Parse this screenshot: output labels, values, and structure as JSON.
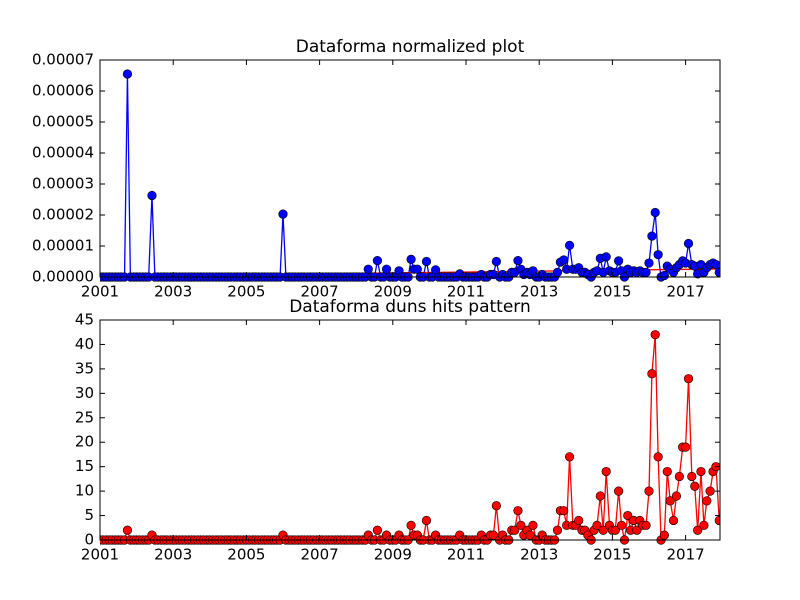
{
  "chart_data": [
    {
      "type": "line",
      "title": "Dataforma normalized plot",
      "color": "#0000ff",
      "x": [
        2001,
        2001.08,
        2001.17,
        2001.25,
        2001.33,
        2001.42,
        2001.5,
        2001.58,
        2001.67,
        2001.75,
        2001.83,
        2001.92,
        2002,
        2002.08,
        2002.17,
        2002.25,
        2002.33,
        2002.42,
        2002.5,
        2002.58,
        2002.67,
        2002.75,
        2002.83,
        2002.92,
        2003,
        2003.08,
        2003.17,
        2003.25,
        2003.33,
        2003.42,
        2003.5,
        2003.58,
        2003.67,
        2003.75,
        2003.83,
        2003.92,
        2004,
        2004.08,
        2004.17,
        2004.25,
        2004.33,
        2004.42,
        2004.5,
        2004.58,
        2004.67,
        2004.75,
        2004.83,
        2004.92,
        2005,
        2005.08,
        2005.17,
        2005.25,
        2005.33,
        2005.42,
        2005.5,
        2005.58,
        2005.67,
        2005.75,
        2005.83,
        2005.92,
        2006,
        2006.08,
        2006.17,
        2006.25,
        2006.33,
        2006.42,
        2006.5,
        2006.58,
        2006.67,
        2006.75,
        2006.83,
        2006.92,
        2007,
        2007.08,
        2007.17,
        2007.25,
        2007.33,
        2007.42,
        2007.5,
        2007.58,
        2007.67,
        2007.75,
        2007.83,
        2007.92,
        2008,
        2008.08,
        2008.17,
        2008.25,
        2008.33,
        2008.42,
        2008.5,
        2008.58,
        2008.67,
        2008.75,
        2008.83,
        2008.92,
        2009,
        2009.08,
        2009.17,
        2009.25,
        2009.33,
        2009.42,
        2009.5,
        2009.58,
        2009.67,
        2009.75,
        2009.83,
        2009.92,
        2010,
        2010.08,
        2010.17,
        2010.25,
        2010.33,
        2010.42,
        2010.5,
        2010.58,
        2010.67,
        2010.75,
        2010.83,
        2010.92,
        2011,
        2011.08,
        2011.17,
        2011.25,
        2011.33,
        2011.42,
        2011.5,
        2011.58,
        2011.67,
        2011.75,
        2011.83,
        2011.92,
        2012,
        2012.08,
        2012.17,
        2012.25,
        2012.33,
        2012.42,
        2012.5,
        2012.58,
        2012.67,
        2012.75,
        2012.83,
        2012.92,
        2013,
        2013.08,
        2013.17,
        2013.25,
        2013.33,
        2013.42,
        2013.5,
        2013.58,
        2013.67,
        2013.75,
        2013.83,
        2013.92,
        2014,
        2014.08,
        2014.17,
        2014.25,
        2014.33,
        2014.42,
        2014.5,
        2014.58,
        2014.67,
        2014.75,
        2014.83,
        2014.92,
        2015,
        2015.08,
        2015.17,
        2015.25,
        2015.33,
        2015.42,
        2015.5,
        2015.58,
        2015.67,
        2015.75,
        2015.83,
        2015.92,
        2016,
        2016.08,
        2016.17,
        2016.25,
        2016.33,
        2016.42,
        2016.5,
        2016.58,
        2016.67,
        2016.75,
        2016.83,
        2016.92,
        2017,
        2017.08,
        2017.17,
        2017.25,
        2017.33,
        2017.42,
        2017.5,
        2017.58,
        2017.67,
        2017.75,
        2017.83,
        2017.92
      ],
      "values": [
        0,
        0,
        0,
        0,
        0,
        0,
        0,
        0,
        0,
        6.55e-05,
        0,
        0,
        0,
        0,
        0,
        0,
        0,
        2.63e-05,
        0,
        0,
        0,
        0,
        0,
        0,
        0,
        0,
        0,
        0,
        0,
        0,
        0,
        0,
        0,
        0,
        0,
        0,
        0,
        0,
        0,
        0,
        0,
        0,
        0,
        0,
        0,
        0,
        0,
        0,
        0,
        0,
        0,
        0,
        0,
        0,
        0,
        0,
        0,
        0,
        0,
        0,
        2.03e-05,
        0,
        0,
        0,
        0,
        0,
        0,
        0,
        0,
        0,
        0,
        0,
        0,
        0,
        0,
        0,
        0,
        0,
        0,
        0,
        0,
        0,
        0,
        0,
        0,
        0,
        0,
        0,
        2.5e-06,
        0,
        0,
        5.3e-06,
        0,
        0,
        2.5e-06,
        0,
        0,
        0,
        2e-06,
        0,
        0,
        0,
        5.7e-06,
        2.5e-06,
        2.5e-06,
        0,
        0,
        5e-06,
        0,
        0,
        2.3e-06,
        0,
        0,
        0,
        0,
        0,
        0,
        0,
        1e-06,
        0,
        0,
        0,
        0,
        0,
        0,
        8e-07,
        0,
        0,
        8e-07,
        8e-07,
        5e-06,
        0,
        8e-07,
        0,
        0,
        1.5e-06,
        1.5e-06,
        5.3e-06,
        2.5e-06,
        8e-07,
        1.5e-06,
        8e-07,
        2e-06,
        0,
        0,
        8e-07,
        0,
        0,
        0,
        0,
        1.5e-06,
        4.8e-06,
        5.5e-06,
        2.5e-06,
        1.02e-05,
        2.5e-06,
        2.5e-06,
        3e-06,
        1.5e-06,
        1.5e-06,
        8e-07,
        0,
        1.5e-06,
        2e-06,
        6e-06,
        1.5e-06,
        6.5e-06,
        2e-06,
        1.5e-06,
        1.5e-06,
        5.2e-06,
        2e-06,
        0,
        2.5e-06,
        1.5e-06,
        2e-06,
        1.5e-06,
        2e-06,
        1.5e-06,
        1.5e-06,
        4.5e-06,
        1.32e-05,
        2.08e-05,
        7.2e-06,
        0,
        5e-07,
        3.5e-06,
        2.5e-06,
        1.5e-06,
        3e-06,
        4e-06,
        5.2e-06,
        4.5e-06,
        1.08e-05,
        4e-06,
        3.5e-06,
        1e-06,
        4e-06,
        1.5e-06,
        3e-06,
        4e-06,
        4.5e-06,
        4e-06,
        1.5e-06
      ],
      "trend": {
        "x": [
          2001,
          2017.94
        ],
        "values": [
          2e-07,
          2.6e-06
        ],
        "color": "#ff0000"
      },
      "xlim": [
        2001,
        2017.94
      ],
      "xticks": [
        2001,
        2003,
        2005,
        2007,
        2009,
        2011,
        2013,
        2015,
        2017
      ],
      "ylim": [
        0,
        7e-05
      ],
      "yticks": [
        {
          "value": 0,
          "label": "0.00000"
        },
        {
          "value": 1e-05,
          "label": "0.00001"
        },
        {
          "value": 2e-05,
          "label": "0.00002"
        },
        {
          "value": 3e-05,
          "label": "0.00003"
        },
        {
          "value": 4e-05,
          "label": "0.00004"
        },
        {
          "value": 5e-05,
          "label": "0.00005"
        },
        {
          "value": 6e-05,
          "label": "0.00006"
        },
        {
          "value": 7e-05,
          "label": "0.00007"
        }
      ]
    },
    {
      "type": "line",
      "title": "Dataforma duns hits pattern",
      "color": "#ff0000",
      "x": [
        2001,
        2001.08,
        2001.17,
        2001.25,
        2001.33,
        2001.42,
        2001.5,
        2001.58,
        2001.67,
        2001.75,
        2001.83,
        2001.92,
        2002,
        2002.08,
        2002.17,
        2002.25,
        2002.33,
        2002.42,
        2002.5,
        2002.58,
        2002.67,
        2002.75,
        2002.83,
        2002.92,
        2003,
        2003.08,
        2003.17,
        2003.25,
        2003.33,
        2003.42,
        2003.5,
        2003.58,
        2003.67,
        2003.75,
        2003.83,
        2003.92,
        2004,
        2004.08,
        2004.17,
        2004.25,
        2004.33,
        2004.42,
        2004.5,
        2004.58,
        2004.67,
        2004.75,
        2004.83,
        2004.92,
        2005,
        2005.08,
        2005.17,
        2005.25,
        2005.33,
        2005.42,
        2005.5,
        2005.58,
        2005.67,
        2005.75,
        2005.83,
        2005.92,
        2006,
        2006.08,
        2006.17,
        2006.25,
        2006.33,
        2006.42,
        2006.5,
        2006.58,
        2006.67,
        2006.75,
        2006.83,
        2006.92,
        2007,
        2007.08,
        2007.17,
        2007.25,
        2007.33,
        2007.42,
        2007.5,
        2007.58,
        2007.67,
        2007.75,
        2007.83,
        2007.92,
        2008,
        2008.08,
        2008.17,
        2008.25,
        2008.33,
        2008.42,
        2008.5,
        2008.58,
        2008.67,
        2008.75,
        2008.83,
        2008.92,
        2009,
        2009.08,
        2009.17,
        2009.25,
        2009.33,
        2009.42,
        2009.5,
        2009.58,
        2009.67,
        2009.75,
        2009.83,
        2009.92,
        2010,
        2010.08,
        2010.17,
        2010.25,
        2010.33,
        2010.42,
        2010.5,
        2010.58,
        2010.67,
        2010.75,
        2010.83,
        2010.92,
        2011,
        2011.08,
        2011.17,
        2011.25,
        2011.33,
        2011.42,
        2011.5,
        2011.58,
        2011.67,
        2011.75,
        2011.83,
        2011.92,
        2012,
        2012.08,
        2012.17,
        2012.25,
        2012.33,
        2012.42,
        2012.5,
        2012.58,
        2012.67,
        2012.75,
        2012.83,
        2012.92,
        2013,
        2013.08,
        2013.17,
        2013.25,
        2013.33,
        2013.42,
        2013.5,
        2013.58,
        2013.67,
        2013.75,
        2013.83,
        2013.92,
        2014,
        2014.08,
        2014.17,
        2014.25,
        2014.33,
        2014.42,
        2014.5,
        2014.58,
        2014.67,
        2014.75,
        2014.83,
        2014.92,
        2015,
        2015.08,
        2015.17,
        2015.25,
        2015.33,
        2015.42,
        2015.5,
        2015.58,
        2015.67,
        2015.75,
        2015.83,
        2015.92,
        2016,
        2016.08,
        2016.17,
        2016.25,
        2016.33,
        2016.42,
        2016.5,
        2016.58,
        2016.67,
        2016.75,
        2016.83,
        2016.92,
        2017,
        2017.08,
        2017.17,
        2017.25,
        2017.33,
        2017.42,
        2017.5,
        2017.58,
        2017.67,
        2017.75,
        2017.83,
        2017.92
      ],
      "values": [
        0,
        0,
        0,
        0,
        0,
        0,
        0,
        0,
        0,
        2,
        0,
        0,
        0,
        0,
        0,
        0,
        0,
        1,
        0,
        0,
        0,
        0,
        0,
        0,
        0,
        0,
        0,
        0,
        0,
        0,
        0,
        0,
        0,
        0,
        0,
        0,
        0,
        0,
        0,
        0,
        0,
        0,
        0,
        0,
        0,
        0,
        0,
        0,
        0,
        0,
        0,
        0,
        0,
        0,
        0,
        0,
        0,
        0,
        0,
        0,
        1,
        0,
        0,
        0,
        0,
        0,
        0,
        0,
        0,
        0,
        0,
        0,
        0,
        0,
        0,
        0,
        0,
        0,
        0,
        0,
        0,
        0,
        0,
        0,
        0,
        0,
        0,
        0,
        1,
        0,
        0,
        2,
        0,
        0,
        1,
        0,
        0,
        0,
        1,
        0,
        0,
        0,
        3,
        1,
        1,
        0,
        0,
        4,
        0,
        0,
        1,
        0,
        0,
        0,
        0,
        0,
        0,
        0,
        1,
        0,
        0,
        0,
        0,
        0,
        0,
        1,
        0,
        0,
        1,
        1,
        7,
        0,
        1,
        0,
        0,
        2,
        2,
        6,
        3,
        1,
        2,
        1,
        3,
        0,
        0,
        1,
        0,
        0,
        0,
        0,
        2,
        6,
        6,
        3,
        17,
        3,
        3,
        4,
        2,
        2,
        1,
        0,
        2,
        3,
        9,
        2,
        14,
        3,
        2,
        2,
        10,
        3,
        0,
        5,
        2,
        4,
        2,
        4,
        3,
        3,
        10,
        34,
        42,
        17,
        0,
        1,
        14,
        8,
        4,
        9,
        13,
        19,
        19,
        33,
        13,
        11,
        2,
        14,
        3,
        8,
        10,
        14,
        15,
        4
      ],
      "xlim": [
        2001,
        2017.94
      ],
      "xticks": [
        2001,
        2003,
        2005,
        2007,
        2009,
        2011,
        2013,
        2015,
        2017
      ],
      "ylim": [
        0,
        45
      ],
      "yticks": [
        0,
        5,
        10,
        15,
        20,
        25,
        30,
        35,
        40,
        45
      ]
    }
  ]
}
